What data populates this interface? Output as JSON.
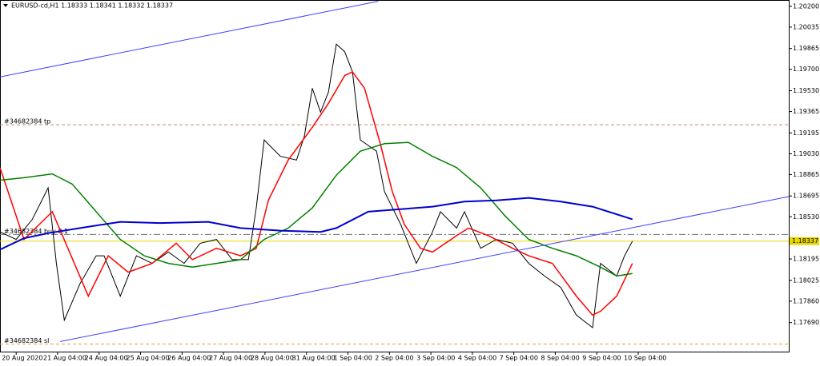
{
  "chart_data": {
    "type": "line",
    "title": "EURUSD-cd,H1  1.18333 1.18341 1.18332 1.18337",
    "xlim": [
      -0.39,
      18.63
    ],
    "ylim": [
      1.1746,
      1.2025
    ],
    "xticks": [
      {
        "value": 0,
        "label": "20 Aug 2020"
      },
      {
        "value": 1,
        "label": "21 Aug 04:00"
      },
      {
        "value": 2,
        "label": "24 Aug 04:00"
      },
      {
        "value": 3,
        "label": "25 Aug 04:00"
      },
      {
        "value": 4,
        "label": "26 Aug 04:00"
      },
      {
        "value": 5,
        "label": "27 Aug 04:00"
      },
      {
        "value": 6,
        "label": "28 Aug 04:00"
      },
      {
        "value": 7,
        "label": "31 Aug 04:00"
      },
      {
        "value": 8,
        "label": "1 Sep 04:00"
      },
      {
        "value": 9,
        "label": "2 Sep 04:00"
      },
      {
        "value": 10,
        "label": "3 Sep 04:00"
      },
      {
        "value": 11,
        "label": "4 Sep 04:00"
      },
      {
        "value": 12,
        "label": "7 Sep 04:00"
      },
      {
        "value": 13,
        "label": "8 Sep 04:00"
      },
      {
        "value": 14,
        "label": "9 Sep 04:00"
      },
      {
        "value": 15,
        "label": "10 Sep 04:00"
      }
    ],
    "yticks": [
      {
        "value": 1.202,
        "label": "1.20200"
      },
      {
        "value": 1.20035,
        "label": "1.20035"
      },
      {
        "value": 1.19865,
        "label": "1.19865"
      },
      {
        "value": 1.197,
        "label": "1.19700"
      },
      {
        "value": 1.1953,
        "label": "1.19530"
      },
      {
        "value": 1.19365,
        "label": "1.19365"
      },
      {
        "value": 1.19195,
        "label": "1.19195"
      },
      {
        "value": 1.1903,
        "label": "1.19030"
      },
      {
        "value": 1.18865,
        "label": "1.18865"
      },
      {
        "value": 1.18695,
        "label": "1.18695"
      },
      {
        "value": 1.1853,
        "label": "1.18530"
      },
      {
        "value": 1.18195,
        "label": "1.18195"
      },
      {
        "value": 1.18025,
        "label": "1.18025"
      },
      {
        "value": 1.1786,
        "label": "1.17860"
      },
      {
        "value": 1.1769,
        "label": "1.17690"
      }
    ],
    "series": [
      {
        "color": "#000000",
        "width": 1,
        "x": [
          -0.39,
          0,
          0.39,
          0.77,
          0.97,
          1.16,
          1.54,
          1.93,
          2.12,
          2.51,
          2.9,
          3.28,
          3.67,
          4.05,
          4.44,
          4.83,
          5.21,
          5.6,
          5.79,
          5.98,
          6.37,
          6.76,
          6.95,
          7.14,
          7.34,
          7.53,
          7.72,
          7.92,
          8.11,
          8.3,
          8.69,
          8.88,
          9.27,
          9.65,
          10.04,
          10.23,
          10.62,
          10.81,
          11.2,
          11.58,
          11.97,
          12.36,
          12.74,
          13.13,
          13.51,
          13.9,
          14.09,
          14.48,
          14.67,
          14.86
        ],
        "values": [
          1.1841,
          1.1835,
          1.1851,
          1.1876,
          1.1816,
          1.1771,
          1.18,
          1.1822,
          1.1822,
          1.179,
          1.1822,
          1.1816,
          1.1825,
          1.1816,
          1.1832,
          1.1835,
          1.1819,
          1.1819,
          1.186,
          1.1914,
          1.1901,
          1.1898,
          1.1917,
          1.1955,
          1.1936,
          1.1952,
          1.199,
          1.1984,
          1.1968,
          1.1914,
          1.1905,
          1.1873,
          1.1847,
          1.1816,
          1.1841,
          1.1857,
          1.1844,
          1.1857,
          1.1828,
          1.1835,
          1.1832,
          1.1816,
          1.1806,
          1.1797,
          1.1775,
          1.1765,
          1.1816,
          1.1806,
          1.1822,
          1.18337
        ]
      },
      {
        "color": "#ff0000",
        "width": 1.5,
        "x": [
          -0.39,
          0.19,
          0.87,
          1.74,
          2.22,
          2.7,
          3.28,
          3.86,
          4.25,
          4.83,
          5.41,
          5.79,
          6.08,
          6.56,
          7.14,
          7.53,
          7.92,
          8.11,
          8.4,
          8.78,
          9.07,
          9.36,
          9.75,
          10.04,
          10.62,
          10.91,
          11.39,
          11.97,
          12.36,
          12.93,
          13.51,
          13.9,
          14.09,
          14.48,
          14.86
        ],
        "values": [
          1.1892,
          1.1835,
          1.1857,
          1.179,
          1.1822,
          1.1809,
          1.1816,
          1.1832,
          1.1819,
          1.1828,
          1.1822,
          1.1828,
          1.1866,
          1.1898,
          1.1924,
          1.1943,
          1.1965,
          1.1968,
          1.1955,
          1.1911,
          1.1873,
          1.1847,
          1.1828,
          1.1825,
          1.1838,
          1.1844,
          1.1838,
          1.1828,
          1.1822,
          1.1816,
          1.179,
          1.1775,
          1.1778,
          1.179,
          1.1816
        ]
      },
      {
        "color": "#008000",
        "width": 1.5,
        "x": [
          -0.39,
          0.19,
          0.87,
          1.35,
          1.93,
          2.51,
          3.09,
          3.67,
          4.25,
          4.83,
          5.41,
          5.98,
          6.56,
          7.14,
          7.72,
          8.3,
          8.88,
          9.46,
          10.04,
          10.62,
          11.2,
          11.78,
          12.36,
          12.93,
          13.51,
          14.09,
          14.48,
          14.86
        ],
        "values": [
          1.1882,
          1.1884,
          1.1887,
          1.1879,
          1.1857,
          1.1835,
          1.1822,
          1.1816,
          1.1813,
          1.1816,
          1.1819,
          1.1835,
          1.1844,
          1.186,
          1.1886,
          1.1905,
          1.1911,
          1.1912,
          1.1901,
          1.1892,
          1.1876,
          1.1854,
          1.1835,
          1.1828,
          1.1822,
          1.1813,
          1.1806,
          1.1808
        ]
      },
      {
        "color": "#0000cc",
        "width": 2,
        "x": [
          -0.39,
          0.19,
          0.77,
          1.54,
          2.51,
          3.47,
          4.63,
          5.41,
          6.37,
          7.34,
          7.72,
          8.49,
          9.27,
          10.04,
          10.81,
          11.58,
          12.36,
          13.13,
          13.9,
          14.86
        ],
        "values": [
          1.1827,
          1.1836,
          1.184,
          1.1844,
          1.1849,
          1.1848,
          1.1849,
          1.1844,
          1.1842,
          1.1841,
          1.1844,
          1.1857,
          1.1859,
          1.1861,
          1.1865,
          1.1866,
          1.1868,
          1.1865,
          1.1861,
          1.1851
        ]
      },
      {
        "color": "#4040ff",
        "width": 1,
        "x": [
          -0.39,
          8.73
        ],
        "values": [
          1.1964,
          1.2024
        ]
      },
      {
        "color": "#4040ff",
        "width": 1,
        "x": [
          1.06,
          18.63
        ],
        "values": [
          1.1754,
          1.1869
        ]
      }
    ],
    "levels": [
      {
        "label": "#34682384 tp",
        "value": 1.1926,
        "color": "#d08070",
        "dash": "4 3"
      },
      {
        "label": "#34682384 buy 0.1",
        "value": 1.1839,
        "color": "#707070",
        "dash": "8 3 2 3"
      },
      {
        "label": "#34682384 sl",
        "value": 1.1752,
        "color": "#e0a040",
        "dash": "4 3"
      }
    ],
    "current_price": {
      "value": 1.18337,
      "value_label": "1.18337",
      "color": "#e8d800"
    }
  }
}
